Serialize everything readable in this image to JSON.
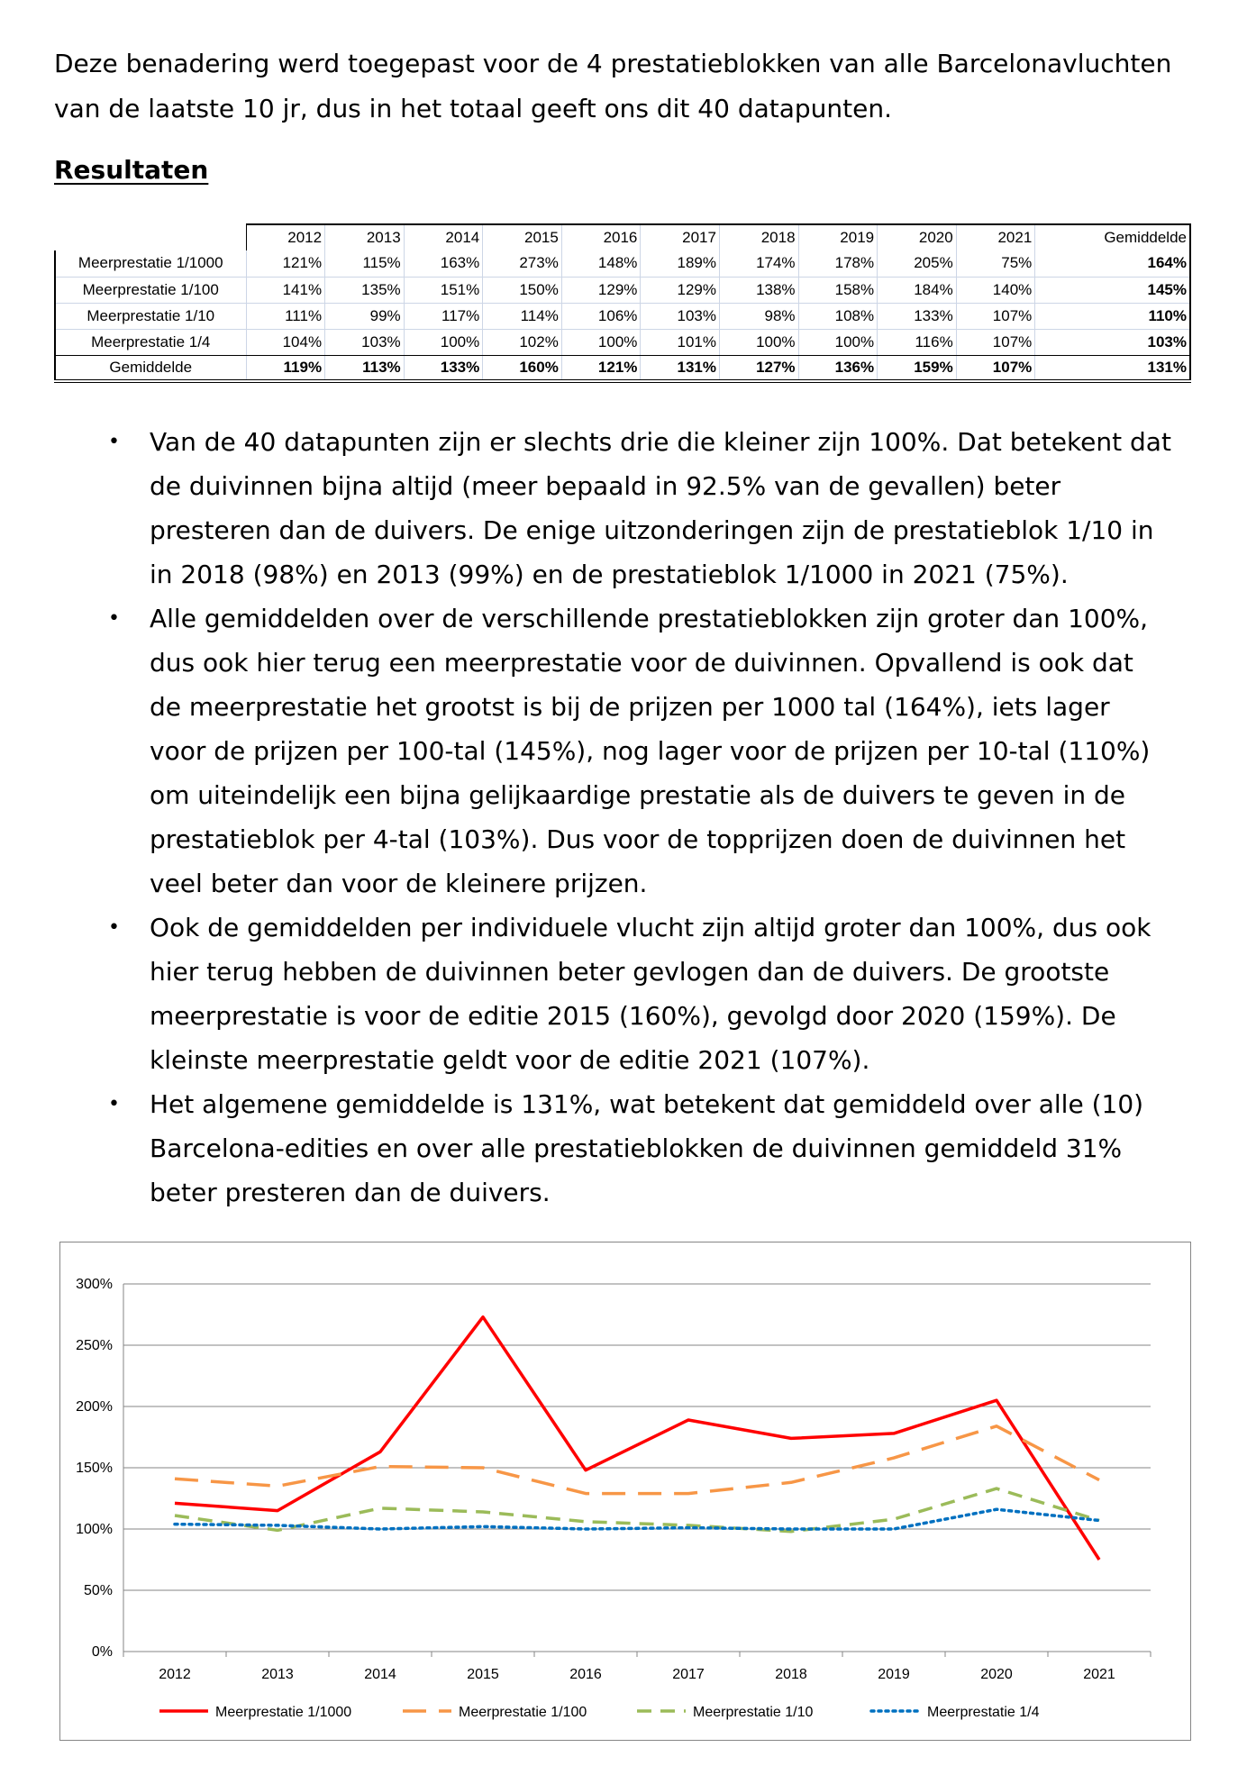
{
  "intro": "Deze benadering werd toegepast voor de 4 prestatieblokken van alle Barcelonavluchten van de laatste 10 jr, dus in het totaal geeft ons dit 40 datapunten.",
  "heading": "Resultaten",
  "table": {
    "columns": [
      "2012",
      "2013",
      "2014",
      "2015",
      "2016",
      "2017",
      "2018",
      "2019",
      "2020",
      "2021",
      "Gemiddelde"
    ],
    "rows": [
      {
        "label": "Meerprestatie 1/1000",
        "values": [
          "121%",
          "115%",
          "163%",
          "273%",
          "148%",
          "189%",
          "174%",
          "178%",
          "205%",
          "75%"
        ],
        "avg": "164%"
      },
      {
        "label": "Meerprestatie 1/100",
        "values": [
          "141%",
          "135%",
          "151%",
          "150%",
          "129%",
          "129%",
          "138%",
          "158%",
          "184%",
          "140%"
        ],
        "avg": "145%"
      },
      {
        "label": "Meerprestatie 1/10",
        "values": [
          "111%",
          "99%",
          "117%",
          "114%",
          "106%",
          "103%",
          "98%",
          "108%",
          "133%",
          "107%"
        ],
        "avg": "110%"
      },
      {
        "label": "Meerprestatie 1/4",
        "values": [
          "104%",
          "103%",
          "100%",
          "102%",
          "100%",
          "101%",
          "100%",
          "100%",
          "116%",
          "107%"
        ],
        "avg": "103%"
      }
    ],
    "footer": {
      "label": "Gemiddelde",
      "values": [
        "119%",
        "113%",
        "133%",
        "160%",
        "121%",
        "131%",
        "127%",
        "136%",
        "159%",
        "107%"
      ],
      "avg": "131%"
    }
  },
  "bullets": [
    "Van de 40 datapunten zijn er slechts drie die kleiner zijn 100%. Dat betekent dat de duivinnen bijna altijd (meer bepaald in 92.5% van de gevallen) beter presteren dan de duivers. De enige uitzonderingen zijn de prestatieblok 1/10 in in 2018 (98%) en 2013 (99%) en de prestatieblok 1/1000 in 2021 (75%).",
    "Alle gemiddelden over de verschillende prestatieblokken zijn groter dan 100%, dus ook hier terug een meerprestatie voor de duivinnen. Opvallend is ook dat de meerprestatie het grootst is bij de prijzen per 1000 tal (164%), iets lager voor de prijzen per 100-tal (145%), nog lager voor de prijzen per 10-tal (110%) om uiteindelijk een bijna gelijkaardige prestatie als de duivers te geven in de prestatieblok per 4-tal (103%). Dus voor de topprijzen doen de duivinnen het veel beter dan voor de kleinere prijzen.",
    "Ook de gemiddelden per individuele vlucht zijn altijd groter dan 100%, dus ook hier terug hebben de duivinnen beter gevlogen dan de duivers. De grootste meerprestatie is voor de editie 2015 (160%), gevolgd door 2020 (159%). De kleinste meerprestatie geldt voor de editie 2021 (107%).",
    "Het algemene gemiddelde is 131%, wat betekent dat gemiddeld over alle (10) Barcelona-edities en over alle prestatieblokken de duivinnen gemiddeld 31% beter presteren dan de duivers."
  ],
  "bullet_symbol": "•",
  "chart_data": {
    "type": "line",
    "x": [
      "2012",
      "2013",
      "2014",
      "2015",
      "2016",
      "2017",
      "2018",
      "2019",
      "2020",
      "2021"
    ],
    "ylim": [
      0,
      300
    ],
    "yticks": [
      0,
      50,
      100,
      150,
      200,
      250,
      300
    ],
    "ytick_labels": [
      "0%",
      "50%",
      "100%",
      "150%",
      "200%",
      "250%",
      "300%"
    ],
    "grid": true,
    "legend_position": "bottom",
    "series": [
      {
        "name": "Meerprestatie 1/1000",
        "color": "#ff0000",
        "style": "solid",
        "values": [
          121,
          115,
          163,
          273,
          148,
          189,
          174,
          178,
          205,
          75
        ]
      },
      {
        "name": "Meerprestatie 1/100",
        "color": "#f79646",
        "style": "long-dash",
        "values": [
          141,
          135,
          151,
          150,
          129,
          129,
          138,
          158,
          184,
          140
        ]
      },
      {
        "name": "Meerprestatie 1/10",
        "color": "#9bbb59",
        "style": "dash",
        "values": [
          111,
          99,
          117,
          114,
          106,
          103,
          98,
          108,
          133,
          107
        ]
      },
      {
        "name": "Meerprestatie 1/4",
        "color": "#0070c0",
        "style": "dot",
        "values": [
          104,
          103,
          100,
          102,
          100,
          101,
          100,
          100,
          116,
          107
        ]
      }
    ]
  }
}
